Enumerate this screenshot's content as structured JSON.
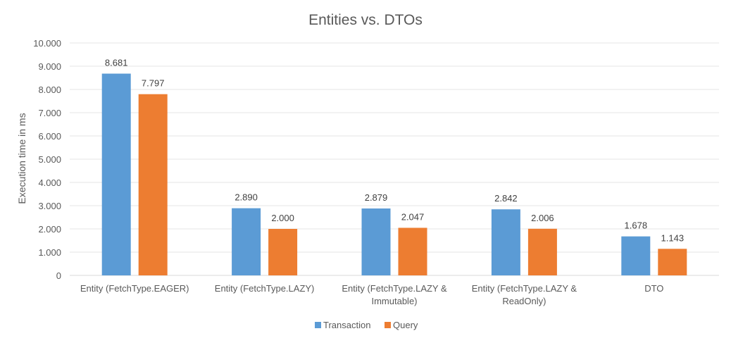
{
  "chart_data": {
    "type": "bar",
    "title": "Entities vs. DTOs",
    "xlabel": "",
    "ylabel": "Execution time in ms",
    "ylim": [
      0,
      10000
    ],
    "yticks": [
      0,
      1000,
      2000,
      3000,
      4000,
      5000,
      6000,
      7000,
      8000,
      9000,
      10000
    ],
    "ytick_labels": [
      "0",
      "1.000",
      "2.000",
      "3.000",
      "4.000",
      "5.000",
      "6.000",
      "7.000",
      "8.000",
      "9.000",
      "10.000"
    ],
    "grid": true,
    "legend_position": "bottom",
    "categories": [
      [
        "Entity (FetchType.EAGER)"
      ],
      [
        "Entity (FetchType.LAZY)"
      ],
      [
        "Entity (FetchType.LAZY &",
        "Immutable)"
      ],
      [
        "Entity (FetchType.LAZY &",
        "ReadOnly)"
      ],
      [
        "DTO"
      ]
    ],
    "series": [
      {
        "name": "Transaction",
        "color": "#5B9BD5",
        "values": [
          8681,
          2890,
          2879,
          2842,
          1678
        ],
        "labels": [
          "8.681",
          "2.890",
          "2.879",
          "2.842",
          "1.678"
        ]
      },
      {
        "name": "Query",
        "color": "#ED7D31",
        "values": [
          7797,
          2000,
          2047,
          2006,
          1143
        ],
        "labels": [
          "7.797",
          "2.000",
          "2.047",
          "2.006",
          "1.143"
        ]
      }
    ]
  }
}
